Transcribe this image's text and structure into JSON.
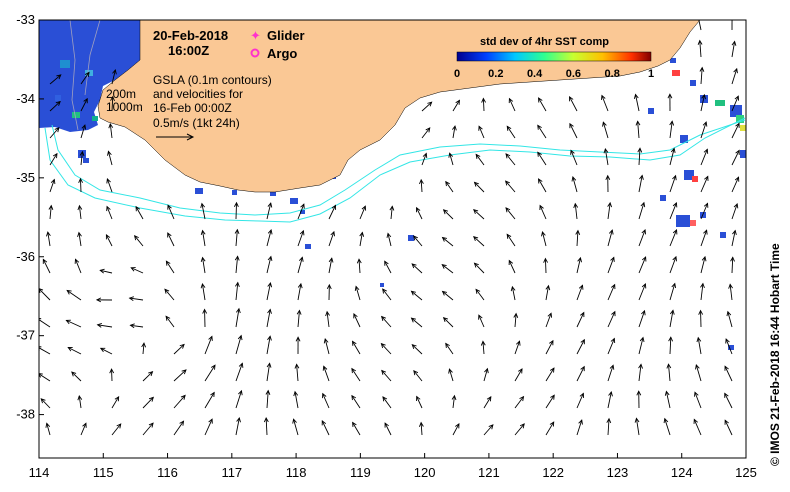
{
  "header": {
    "date": "20-Feb-2018",
    "time": "16:00Z"
  },
  "legend": {
    "glider_label": "Glider",
    "argo_label": "Argo",
    "glider_color": "#ff33cc",
    "argo_color": "#ff33cc"
  },
  "annotation": {
    "line1": "GSLA (0.1m contours)",
    "line2": "and velocities for",
    "line3": "16-Feb 00:00Z",
    "line4": "0.5m/s (1kt 24h)"
  },
  "depth_labels": {
    "d200": "200m",
    "d1000": "1000m"
  },
  "colorbar": {
    "title": "std dev of 4hr SST comp",
    "ticks": [
      "0",
      "0.2",
      "0.4",
      "0.6",
      "0.8",
      "1"
    ]
  },
  "credit": "© IMOS 21-Feb-2018 16:44 Hobart Time",
  "axes": {
    "x_ticks": [
      "114",
      "115",
      "116",
      "117",
      "118",
      "119",
      "120",
      "121",
      "122",
      "123",
      "124",
      "125"
    ],
    "y_ticks": [
      "-33",
      "-34",
      "-35",
      "-36",
      "-37",
      "-38"
    ],
    "x_range": [
      114,
      125
    ],
    "y_range": [
      -38.55,
      -33
    ]
  },
  "colors": {
    "land": "#fac895",
    "isobath": "#33e6e6",
    "sst_cold": "#2a4fd6",
    "vector": "#000000"
  }
}
